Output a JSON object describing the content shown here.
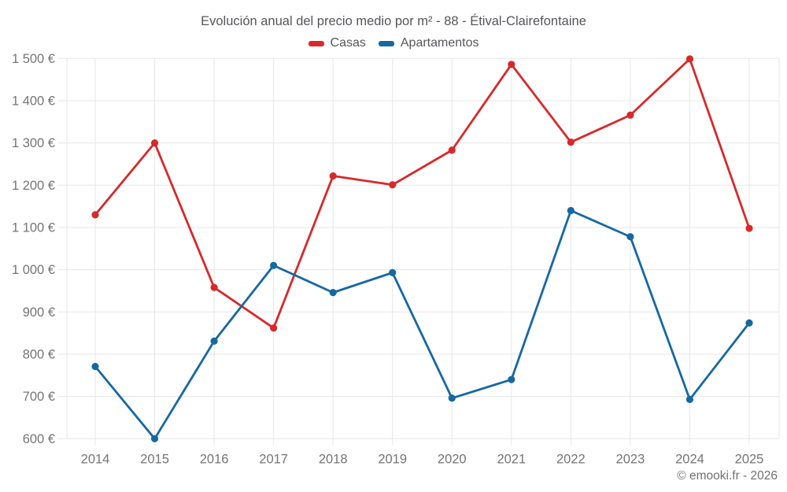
{
  "chart_data": {
    "type": "line",
    "title": "Evolución anual del precio medio por m² - 88 - Étival-Clairefontaine",
    "x": [
      2014,
      2015,
      2016,
      2017,
      2018,
      2019,
      2020,
      2021,
      2022,
      2023,
      2024,
      2025
    ],
    "series": [
      {
        "name": "Casas",
        "color": "#d7292b",
        "values": [
          1130,
          1300,
          958,
          862,
          1222,
          1201,
          1283,
          1486,
          1302,
          1366,
          1499,
          1098
        ]
      },
      {
        "name": "Apartamentos",
        "color": "#1668a2",
        "values": [
          771,
          600,
          831,
          1010,
          946,
          993,
          696,
          740,
          1140,
          1078,
          693,
          874
        ]
      }
    ],
    "ylim": [
      600,
      1500
    ],
    "ytick_step": 100,
    "ytick_unit": "€",
    "grid": true,
    "legend_position": "top"
  },
  "footer": "© emooki.fr - 2026",
  "colors": {
    "grid": "#e7e7e7",
    "axis_text": "#757575",
    "title_text": "#55565a",
    "legend_text": "#55565a",
    "footer_text": "#6f7072",
    "background": "#ffffff"
  }
}
